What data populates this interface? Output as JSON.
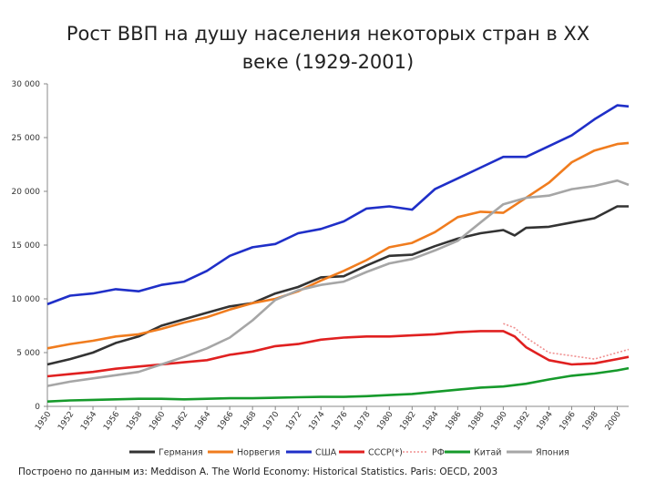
{
  "chart_data": {
    "type": "line",
    "title_line1": "Рост ВВП на душу населения некоторых стран в XX",
    "title_line2": "веке (1929-2001)",
    "note": "Построено по данным из: Meddison A. The World Economy: Historical Statistics. Paris: OECD, 2003",
    "ylim": [
      0,
      30000
    ],
    "yticks": [
      0,
      5000,
      10000,
      15000,
      20000,
      25000,
      30000
    ],
    "ytick_labels": [
      "0",
      "5 000",
      "10 000",
      "15 000",
      "20 000",
      "25 000",
      "30 000"
    ],
    "xlim": [
      1950,
      2001
    ],
    "xticks": [
      1950,
      1952,
      1954,
      1956,
      1958,
      1960,
      1962,
      1964,
      1966,
      1968,
      1970,
      1972,
      1974,
      1976,
      1978,
      1980,
      1982,
      1984,
      1986,
      1988,
      1990,
      1992,
      1994,
      1996,
      1998,
      2000
    ],
    "grid": false,
    "legend_position": "bottom",
    "series": [
      {
        "name": "Германия",
        "color": "#333333",
        "dashed": false,
        "x": [
          1950,
          1952,
          1954,
          1956,
          1958,
          1960,
          1962,
          1964,
          1966,
          1968,
          1970,
          1972,
          1974,
          1976,
          1978,
          1980,
          1982,
          1984,
          1986,
          1988,
          1990,
          1991,
          1992,
          1994,
          1996,
          1998,
          2000,
          2001
        ],
        "y": [
          3900,
          4400,
          5000,
          5900,
          6500,
          7500,
          8100,
          8700,
          9300,
          9600,
          10500,
          11100,
          12000,
          12100,
          13100,
          14000,
          14100,
          14900,
          15600,
          16100,
          16400,
          15900,
          16600,
          16700,
          17100,
          17500,
          18600,
          18600
        ]
      },
      {
        "name": "Норвегия",
        "color": "#f07c1e",
        "dashed": false,
        "x": [
          1950,
          1952,
          1954,
          1956,
          1958,
          1960,
          1962,
          1964,
          1966,
          1968,
          1970,
          1972,
          1974,
          1976,
          1978,
          1980,
          1982,
          1984,
          1986,
          1988,
          1990,
          1992,
          1994,
          1996,
          1998,
          2000,
          2001
        ],
        "y": [
          5400,
          5800,
          6100,
          6500,
          6700,
          7200,
          7800,
          8300,
          9000,
          9600,
          10000,
          10700,
          11700,
          12600,
          13600,
          14800,
          15200,
          16200,
          17600,
          18100,
          18000,
          19400,
          20800,
          22700,
          23800,
          24400,
          24500
        ]
      },
      {
        "name": "США",
        "color": "#1f2fc8",
        "dashed": false,
        "x": [
          1950,
          1952,
          1954,
          1956,
          1958,
          1960,
          1962,
          1964,
          1966,
          1968,
          1970,
          1972,
          1974,
          1976,
          1978,
          1980,
          1982,
          1984,
          1986,
          1988,
          1990,
          1992,
          1994,
          1996,
          1998,
          2000,
          2001
        ],
        "y": [
          9500,
          10300,
          10500,
          10900,
          10700,
          11300,
          11600,
          12600,
          14000,
          14800,
          15100,
          16100,
          16500,
          17200,
          18400,
          18600,
          18300,
          20200,
          21200,
          22200,
          23200,
          23200,
          24200,
          25200,
          26700,
          28000,
          27900
        ]
      },
      {
        "name": "СССР(*)",
        "color": "#e02020",
        "dashed": false,
        "x": [
          1950,
          1952,
          1954,
          1956,
          1958,
          1960,
          1962,
          1964,
          1966,
          1968,
          1970,
          1972,
          1974,
          1976,
          1978,
          1980,
          1982,
          1984,
          1986,
          1988,
          1990,
          1991,
          1992,
          1993,
          1994,
          1996,
          1998,
          2000,
          2001
        ],
        "y": [
          2800,
          3000,
          3200,
          3500,
          3700,
          3900,
          4100,
          4300,
          4800,
          5100,
          5600,
          5800,
          6200,
          6400,
          6500,
          6500,
          6600,
          6700,
          6900,
          7000,
          7000,
          6500,
          5500,
          4900,
          4300,
          3900,
          4000,
          4400,
          4600
        ]
      },
      {
        "name": "РФ",
        "color": "#f09090",
        "dashed": true,
        "x": [
          1990,
          1991,
          1992,
          1993,
          1994,
          1996,
          1998,
          2000,
          2001
        ],
        "y": [
          7700,
          7300,
          6400,
          5700,
          5000,
          4700,
          4400,
          5000,
          5300
        ]
      },
      {
        "name": "Китай",
        "color": "#169a2b",
        "dashed": false,
        "x": [
          1950,
          1952,
          1954,
          1956,
          1958,
          1960,
          1962,
          1964,
          1966,
          1968,
          1970,
          1972,
          1974,
          1976,
          1978,
          1980,
          1982,
          1984,
          1986,
          1988,
          1990,
          1992,
          1994,
          1996,
          1998,
          2000,
          2001
        ],
        "y": [
          450,
          550,
          600,
          650,
          700,
          700,
          650,
          700,
          750,
          750,
          800,
          850,
          880,
          880,
          950,
          1050,
          1150,
          1350,
          1550,
          1750,
          1850,
          2100,
          2500,
          2850,
          3050,
          3350,
          3550
        ]
      },
      {
        "name": "Япония",
        "color": "#a6a6a6",
        "dashed": false,
        "x": [
          1950,
          1952,
          1954,
          1956,
          1958,
          1960,
          1962,
          1964,
          1966,
          1968,
          1970,
          1972,
          1974,
          1976,
          1978,
          1980,
          1982,
          1984,
          1986,
          1988,
          1990,
          1992,
          1994,
          1996,
          1998,
          2000,
          2001
        ],
        "y": [
          1900,
          2300,
          2600,
          2900,
          3200,
          3900,
          4600,
          5400,
          6400,
          8000,
          9900,
          10800,
          11300,
          11600,
          12500,
          13300,
          13700,
          14500,
          15400,
          17100,
          18800,
          19400,
          19600,
          20200,
          20500,
          21000,
          20600
        ]
      }
    ]
  }
}
